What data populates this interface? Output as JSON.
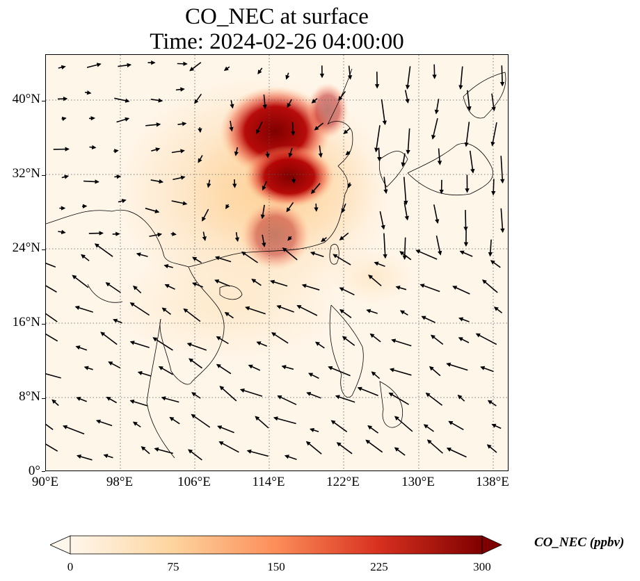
{
  "title_line1": "CO_NEC at surface",
  "title_line2": "Time: 2024-02-26 04:00:00",
  "map": {
    "lon_range": [
      90,
      139.7
    ],
    "lat_range": [
      0,
      44.8
    ],
    "lon_ticks": [
      "90°E",
      "98°E",
      "106°E",
      "114°E",
      "122°E",
      "130°E",
      "138°E"
    ],
    "lat_ticks": [
      "0°",
      "8°N",
      "16°N",
      "24°N",
      "32°N",
      "40°N"
    ],
    "gridlines": true,
    "field_colormap": "OrRd",
    "vector_field": "wind arrows"
  },
  "colorbar": {
    "label": "CO_NEC (ppbv)",
    "ticks": [
      "0",
      "75",
      "150",
      "225",
      "300"
    ],
    "range": [
      0,
      300
    ],
    "extend": "both",
    "colors": [
      "#fff7ec",
      "#fdd49e",
      "#fc8d59",
      "#d7301f",
      "#7f0000"
    ]
  }
}
